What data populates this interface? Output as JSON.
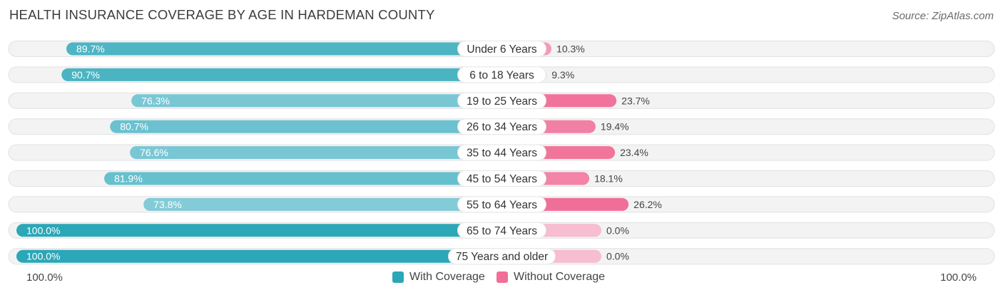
{
  "title": "HEALTH INSURANCE COVERAGE BY AGE IN HARDEMAN COUNTY",
  "source": "Source: ZipAtlas.com",
  "axis": {
    "left_label": "100.0%",
    "right_label": "100.0%"
  },
  "legend": {
    "with": {
      "label": "With Coverage",
      "color": "#2ba7b7"
    },
    "without": {
      "label": "Without Coverage",
      "color": "#f06f98"
    }
  },
  "chart_data": {
    "type": "bar",
    "orientation": "diverging-horizontal",
    "title": "HEALTH INSURANCE COVERAGE BY AGE IN HARDEMAN COUNTY",
    "categories": [
      "Under 6 Years",
      "6 to 18 Years",
      "19 to 25 Years",
      "26 to 34 Years",
      "35 to 44 Years",
      "45 to 54 Years",
      "55 to 64 Years",
      "65 to 74 Years",
      "75 Years and older"
    ],
    "series": [
      {
        "name": "With Coverage",
        "values": [
          89.7,
          90.7,
          76.3,
          80.7,
          76.6,
          81.9,
          73.8,
          100.0,
          100.0
        ],
        "labels": [
          "89.7%",
          "90.7%",
          "76.3%",
          "80.7%",
          "76.6%",
          "81.9%",
          "73.8%",
          "100.0%",
          "100.0%"
        ]
      },
      {
        "name": "Without Coverage",
        "values": [
          10.3,
          9.3,
          23.7,
          19.4,
          23.4,
          18.1,
          26.2,
          0.0,
          0.0
        ],
        "labels": [
          "10.3%",
          "9.3%",
          "23.7%",
          "19.4%",
          "23.4%",
          "18.1%",
          "26.2%",
          "0.0%",
          "0.0%"
        ]
      }
    ],
    "xlim": [
      0,
      100
    ],
    "legend_position": "bottom-center"
  }
}
